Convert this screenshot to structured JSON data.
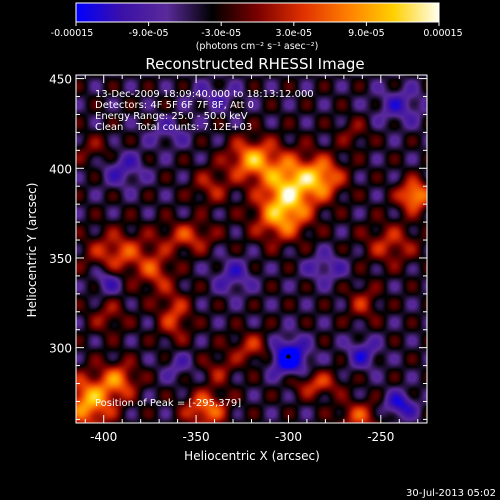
{
  "chart_data": {
    "type": "heatmap",
    "title": "Reconstructed RHESSI Image",
    "xlabel": "Heliocentric X (arcsec)",
    "ylabel": "Heliocentric Y (arcsec)",
    "xlim": [
      -415,
      -225
    ],
    "ylim": [
      258,
      452
    ],
    "xticks": [
      -400,
      -350,
      -300,
      -250
    ],
    "yticks": [
      300,
      350,
      400,
      450
    ],
    "colorbar": {
      "min": -0.00015,
      "max": 0.00015,
      "tick_values": [
        -0.00015,
        -9e-05,
        -3e-05,
        3e-05,
        9e-05,
        0.00015
      ],
      "tick_labels": [
        "-0.00015",
        "-9.0e-05",
        "-3.0e-05",
        "3.0e-05",
        "9.0e-05",
        "0.00015"
      ],
      "unit_label": "(photons cm⁻² s⁻¹ asec⁻²)",
      "colors": [
        "#0000ff",
        "#3a10a8",
        "#5a2a9a",
        "#000000",
        "#7a0000",
        "#e03000",
        "#ff7f00",
        "#ffd000",
        "#fffff0"
      ]
    },
    "annotations": [
      "13-Dec-2009 18:09:40.000 to 18:13:12.000",
      "Detectors: 4F 5F 6F 7F 8F, Att 0",
      "Energy Range: 25.0 - 50.0 keV",
      "Clean    Total counts: 7.12E+03",
      "Position of Peak = [-295,379]"
    ],
    "peak_position": [
      -295,
      379
    ],
    "peak_marker": [
      -300,
      295
    ],
    "blobs": [
      {
        "x": -300,
        "y": 390,
        "v": 0.00015,
        "sx": 10,
        "sy": 12
      },
      {
        "x": -320,
        "y": 405,
        "v": 0.00013,
        "sx": 9,
        "sy": 8
      },
      {
        "x": -282,
        "y": 395,
        "v": 0.00012,
        "sx": 8,
        "sy": 8
      },
      {
        "x": -305,
        "y": 372,
        "v": 0.0001,
        "sx": 10,
        "sy": 9
      },
      {
        "x": -342,
        "y": 390,
        "v": 6e-05,
        "sx": 7,
        "sy": 7
      },
      {
        "x": -355,
        "y": 362,
        "v": 8e-05,
        "sx": 10,
        "sy": 6
      },
      {
        "x": -392,
        "y": 352,
        "v": 9e-05,
        "sx": 12,
        "sy": 9
      },
      {
        "x": -372,
        "y": 342,
        "v": 7e-05,
        "sx": 6,
        "sy": 8
      },
      {
        "x": -362,
        "y": 318,
        "v": 8e-05,
        "sx": 6,
        "sy": 10
      },
      {
        "x": -398,
        "y": 318,
        "v": 5e-05,
        "sx": 7,
        "sy": 7
      },
      {
        "x": -408,
        "y": 270,
        "v": 0.00014,
        "sx": 9,
        "sy": 10
      },
      {
        "x": -392,
        "y": 282,
        "v": 0.0001,
        "sx": 7,
        "sy": 7
      },
      {
        "x": -345,
        "y": 266,
        "v": 0.00011,
        "sx": 8,
        "sy": 7
      },
      {
        "x": -320,
        "y": 300,
        "v": 7e-05,
        "sx": 8,
        "sy": 6
      },
      {
        "x": -338,
        "y": 288,
        "v": 5e-05,
        "sx": 6,
        "sy": 6
      },
      {
        "x": -285,
        "y": 280,
        "v": 8e-05,
        "sx": 9,
        "sy": 5
      },
      {
        "x": -262,
        "y": 262,
        "v": 8e-05,
        "sx": 8,
        "sy": 6
      },
      {
        "x": -245,
        "y": 358,
        "v": 7e-05,
        "sx": 10,
        "sy": 8
      },
      {
        "x": -260,
        "y": 325,
        "v": 6e-05,
        "sx": 6,
        "sy": 7
      },
      {
        "x": -232,
        "y": 385,
        "v": 0.00014,
        "sx": 6,
        "sy": 6
      },
      {
        "x": -265,
        "y": 420,
        "v": 4e-05,
        "sx": 6,
        "sy": 6
      },
      {
        "x": -405,
        "y": 410,
        "v": 4e-05,
        "sx": 8,
        "sy": 6
      },
      {
        "x": -340,
        "y": 440,
        "v": -4e-05,
        "sx": 10,
        "sy": 6
      },
      {
        "x": -390,
        "y": 400,
        "v": -6e-05,
        "sx": 8,
        "sy": 7
      },
      {
        "x": -300,
        "y": 295,
        "v": -0.00014,
        "sx": 7,
        "sy": 7
      },
      {
        "x": -330,
        "y": 340,
        "v": -6e-05,
        "sx": 7,
        "sy": 7
      },
      {
        "x": -398,
        "y": 338,
        "v": -7e-05,
        "sx": 6,
        "sy": 6
      },
      {
        "x": -260,
        "y": 297,
        "v": -7e-05,
        "sx": 6,
        "sy": 6
      },
      {
        "x": -240,
        "y": 268,
        "v": -9e-05,
        "sx": 6,
        "sy": 5
      },
      {
        "x": -240,
        "y": 435,
        "v": -6e-05,
        "sx": 9,
        "sy": 7
      },
      {
        "x": -365,
        "y": 420,
        "v": -4e-05,
        "sx": 8,
        "sy": 6
      },
      {
        "x": -280,
        "y": 345,
        "v": -5e-05,
        "sx": 8,
        "sy": 6
      },
      {
        "x": -360,
        "y": 290,
        "v": -4e-05,
        "sx": 6,
        "sy": 6
      }
    ]
  },
  "footer_date": "30-Jul-2013 05:02"
}
